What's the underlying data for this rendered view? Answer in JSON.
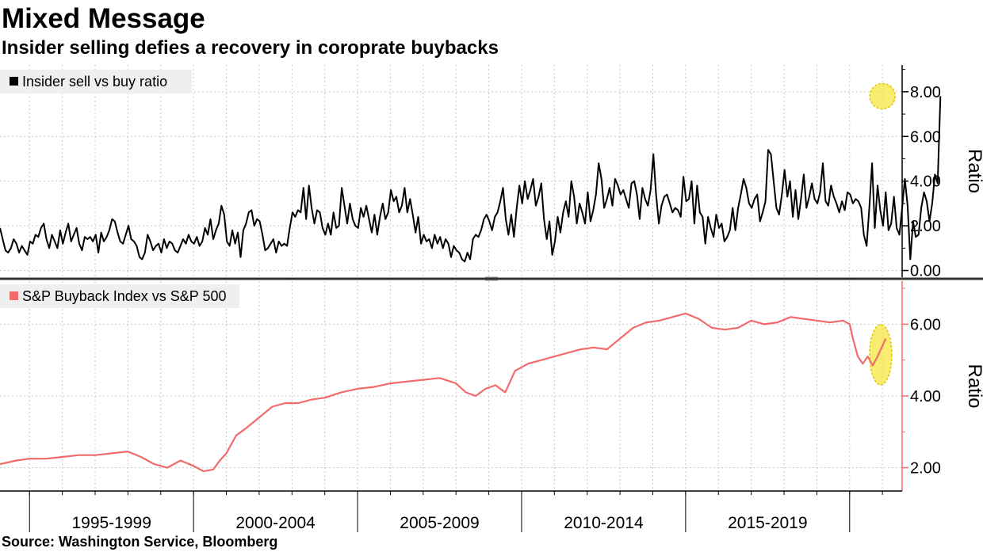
{
  "header": {
    "title": "Mixed Message",
    "subtitle": "Insider selling defies a recovery in coroprate buybacks"
  },
  "footer": {
    "source": "Source: Washington Service, Bloomberg"
  },
  "colors": {
    "series_top": "#000000",
    "series_bottom": "#f26b6b",
    "highlight": "#f5e642",
    "grid": "#c8c8c8",
    "divider": "#333333"
  },
  "chart_data": [
    {
      "type": "line",
      "panel": "top",
      "legend": "Insider sell vs buy ratio",
      "ylabel": "Ratio",
      "ylim": [
        -0.3,
        9.2
      ],
      "yticks": [
        0,
        2,
        4,
        6,
        8
      ],
      "ytick_labels": [
        "0.00",
        "2.00",
        "4.00",
        "6.00",
        "8.00"
      ],
      "xlim": [
        1994.1,
        2021.6
      ],
      "x_start": 1994.1,
      "x_step": 0.0833333,
      "highlight": {
        "x": 2021.05,
        "y": 7.8
      },
      "values": [
        1.9,
        1.4,
        0.9,
        0.8,
        1.0,
        1.4,
        1.2,
        0.8,
        1.1,
        0.9,
        0.7,
        1.3,
        1.2,
        1.6,
        1.5,
        1.9,
        2.1,
        1.4,
        1.0,
        1.6,
        1.3,
        1.0,
        1.8,
        1.2,
        1.7,
        2.1,
        1.3,
        1.6,
        1.9,
        1.2,
        0.9,
        1.5,
        1.4,
        1.5,
        1.3,
        1.6,
        0.8,
        1.7,
        1.3,
        1.5,
        1.8,
        2.3,
        2.2,
        1.7,
        1.3,
        1.2,
        1.6,
        2.0,
        1.4,
        1.3,
        1.1,
        0.6,
        0.5,
        0.8,
        1.6,
        1.3,
        0.9,
        1.1,
        1.2,
        0.8,
        1.4,
        1.0,
        1.3,
        1.2,
        0.9,
        0.8,
        1.1,
        1.4,
        1.2,
        1.6,
        1.3,
        1.2,
        1.5,
        1.1,
        1.3,
        1.9,
        1.6,
        2.3,
        1.4,
        1.8,
        2.1,
        2.9,
        2.5,
        1.3,
        1.1,
        1.8,
        1.2,
        1.7,
        0.6,
        1.8,
        2.1,
        2.6,
        2.7,
        2.0,
        2.3,
        2.2,
        1.6,
        0.9,
        1.0,
        1.2,
        1.4,
        0.8,
        1.3,
        1.1,
        1.2,
        1.1,
        1.9,
        2.6,
        2.4,
        2.7,
        2.6,
        3.7,
        2.3,
        3.8,
        2.8,
        2.1,
        2.7,
        2.6,
        1.9,
        1.6,
        2.1,
        1.6,
        2.6,
        1.9,
        2.0,
        3.7,
        2.9,
        2.1,
        3.0,
        2.3,
        2.0,
        1.9,
        2.8,
        2.4,
        2.9,
        2.3,
        1.7,
        2.5,
        1.6,
        2.4,
        3.0,
        2.3,
        2.6,
        3.6,
        3.1,
        3.3,
        2.6,
        2.9,
        3.7,
        2.6,
        3.2,
        2.5,
        1.7,
        2.4,
        1.2,
        1.6,
        1.3,
        1.4,
        1.0,
        1.6,
        1.2,
        1.5,
        1.0,
        1.4,
        1.2,
        0.6,
        1.1,
        0.9,
        0.8,
        0.5,
        0.4,
        0.8,
        0.5,
        1.4,
        1.6,
        1.5,
        1.8,
        2.3,
        2.5,
        2.2,
        1.8,
        2.4,
        2.6,
        3.1,
        3.7,
        2.3,
        1.6,
        2.5,
        1.5,
        2.8,
        3.8,
        3.0,
        4.0,
        3.2,
        3.6,
        4.1,
        2.9,
        3.3,
        3.9,
        2.3,
        1.4,
        2.2,
        0.7,
        1.3,
        2.4,
        1.7,
        2.6,
        3.1,
        2.4,
        4.0,
        3.3,
        2.1,
        3.0,
        2.6,
        2.1,
        3.5,
        2.2,
        2.7,
        3.4,
        4.8,
        4.1,
        2.8,
        3.2,
        3.7,
        2.9,
        4.1,
        3.8,
        3.4,
        3.6,
        3.2,
        2.8,
        3.9,
        4.0,
        3.4,
        2.3,
        3.7,
        3.2,
        2.9,
        3.6,
        5.2,
        3.4,
        2.1,
        2.9,
        3.3,
        3.4,
        3.0,
        2.6,
        2.8,
        2.7,
        2.4,
        4.2,
        3.1,
        3.2,
        4.0,
        2.1,
        3.8,
        2.6,
        2.4,
        1.2,
        2.4,
        1.9,
        1.5,
        2.5,
        1.9,
        2.1,
        1.3,
        1.5,
        1.8,
        2.8,
        1.8,
        2.8,
        3.4,
        4.1,
        3.7,
        3.0,
        2.8,
        3.2,
        3.4,
        2.2,
        2.6,
        3.1,
        5.4,
        5.2,
        4.0,
        2.8,
        2.5,
        3.4,
        4.5,
        3.3,
        4.0,
        2.4,
        3.6,
        2.3,
        3.2,
        4.3,
        2.8,
        3.3,
        3.9,
        3.2,
        3.0,
        3.5,
        4.8,
        3.1,
        2.9,
        3.8,
        3.3,
        3.0,
        2.6,
        3.1,
        2.7,
        3.5,
        3.4,
        3.0,
        3.2,
        3.1,
        2.8,
        1.6,
        1.1,
        2.8,
        4.8,
        1.9,
        3.8,
        2.7,
        2.0,
        3.5,
        1.8,
        2.1,
        3.3,
        1.9,
        1.6,
        2.8,
        4.1,
        2.9,
        0.5,
        2.2,
        1.5,
        1.6,
        2.8,
        3.5,
        3.1,
        2.2,
        3.0,
        4.3,
        3.9,
        7.8
      ]
    },
    {
      "type": "line",
      "panel": "bottom",
      "legend": "S&P Buyback Index vs S&P 500",
      "ylabel": "Ratio",
      "ylim": [
        1.35,
        7.2
      ],
      "yticks": [
        2,
        4,
        6
      ],
      "ytick_labels": [
        "2.00",
        "4.00",
        "6.00"
      ],
      "xlim": [
        1994.1,
        2021.6
      ],
      "x": [
        1994.1,
        1994.6,
        1995.0,
        1995.5,
        1996.0,
        1996.5,
        1997.0,
        1997.5,
        1998.0,
        1998.4,
        1998.8,
        1999.2,
        1999.6,
        2000.0,
        2000.3,
        2000.6,
        2000.8,
        2001.0,
        2001.3,
        2001.6,
        2002.0,
        2002.4,
        2002.8,
        2003.2,
        2003.6,
        2004.0,
        2004.5,
        2005.0,
        2005.5,
        2006.0,
        2006.5,
        2007.0,
        2007.5,
        2008.0,
        2008.3,
        2008.6,
        2008.9,
        2009.2,
        2009.5,
        2009.8,
        2010.2,
        2010.6,
        2011.0,
        2011.4,
        2011.8,
        2012.2,
        2012.6,
        2013.0,
        2013.4,
        2013.8,
        2014.2,
        2014.6,
        2015.0,
        2015.4,
        2015.8,
        2016.2,
        2016.6,
        2017.0,
        2017.4,
        2017.8,
        2018.2,
        2018.6,
        2019.0,
        2019.4,
        2019.8,
        2020.0,
        2020.1,
        2020.25,
        2020.4,
        2020.55,
        2020.7,
        2020.85,
        2021.0,
        2021.1
      ],
      "values": [
        2.1,
        2.2,
        2.25,
        2.25,
        2.3,
        2.35,
        2.35,
        2.4,
        2.45,
        2.3,
        2.1,
        2.0,
        2.2,
        2.05,
        1.9,
        1.95,
        2.2,
        2.4,
        2.9,
        3.1,
        3.4,
        3.7,
        3.8,
        3.8,
        3.9,
        3.95,
        4.1,
        4.2,
        4.25,
        4.35,
        4.4,
        4.45,
        4.5,
        4.35,
        4.1,
        4.0,
        4.2,
        4.3,
        4.1,
        4.7,
        4.9,
        5.0,
        5.1,
        5.2,
        5.3,
        5.35,
        5.3,
        5.6,
        5.9,
        6.05,
        6.1,
        6.2,
        6.3,
        6.15,
        5.9,
        5.85,
        5.9,
        6.1,
        6.0,
        6.05,
        6.2,
        6.15,
        6.1,
        6.05,
        6.1,
        6.0,
        5.6,
        5.1,
        4.9,
        5.1,
        4.85,
        5.1,
        5.4,
        5.6
      ],
      "highlight": {
        "x": 2020.85,
        "y": 5.15
      }
    }
  ],
  "x_periods": [
    "1995-1999",
    "2000-2004",
    "2005-2009",
    "2010-2014",
    "2015-2019"
  ]
}
